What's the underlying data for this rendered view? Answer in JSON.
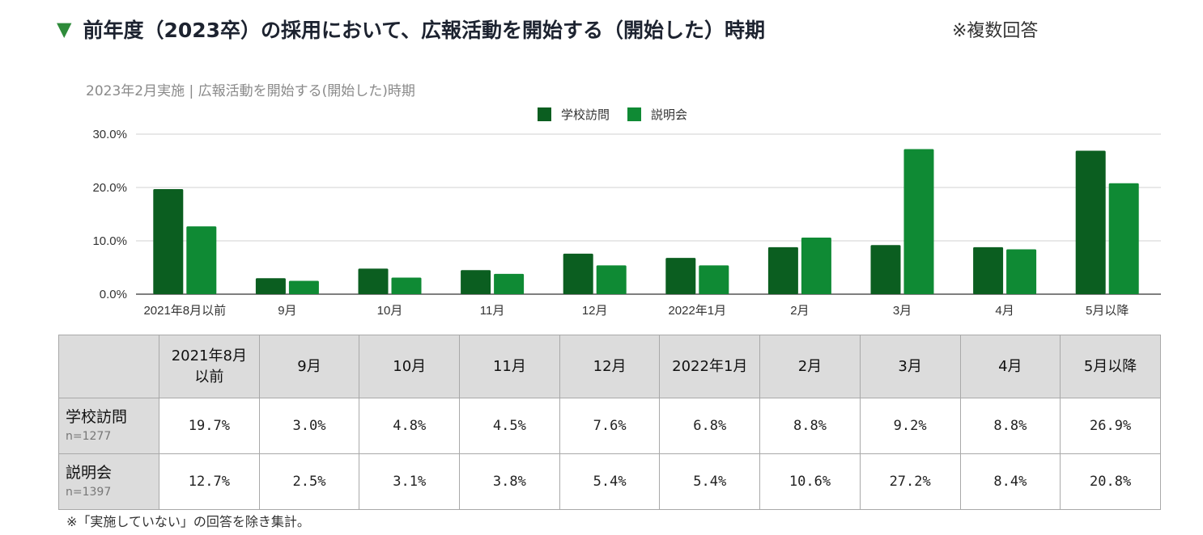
{
  "header": {
    "title": "前年度（2023卒）の採用において、広報活動を開始する（開始した）時期",
    "note": "※複数回答"
  },
  "chart_data": {
    "type": "bar",
    "title": "2023年2月実施 | 広報活動を開始する(開始した)時期",
    "categories": [
      "2021年8月以前",
      "9月",
      "10月",
      "11月",
      "12月",
      "2022年1月",
      "2月",
      "3月",
      "4月",
      "5月以降"
    ],
    "series": [
      {
        "name": "学校訪問",
        "color": "#0b5e20",
        "values": [
          19.7,
          3.0,
          4.8,
          4.5,
          7.6,
          6.8,
          8.8,
          9.2,
          8.8,
          26.9
        ]
      },
      {
        "name": "説明会",
        "color": "#0f8a34",
        "values": [
          12.7,
          2.5,
          3.1,
          3.8,
          5.4,
          5.4,
          10.6,
          27.2,
          8.4,
          20.8
        ]
      }
    ],
    "yticks": [
      "0.0%",
      "10.0%",
      "20.0%",
      "30.0%"
    ],
    "ylim": [
      0,
      30
    ],
    "legend_position": "top-center",
    "grid": true
  },
  "table": {
    "headers": [
      "2021年8月\n以前",
      "9月",
      "10月",
      "11月",
      "12月",
      "2022年1月",
      "2月",
      "3月",
      "4月",
      "5月以降"
    ],
    "rows": [
      {
        "label": "学校訪問",
        "n": "n=1277",
        "values": [
          "19.7%",
          "3.0%",
          "4.8%",
          "4.5%",
          "7.6%",
          "6.8%",
          "8.8%",
          "9.2%",
          "8.8%",
          "26.9%"
        ]
      },
      {
        "label": "説明会",
        "n": "n=1397",
        "values": [
          "12.7%",
          "2.5%",
          "3.1%",
          "3.8%",
          "5.4%",
          "5.4%",
          "10.6%",
          "27.2%",
          "8.4%",
          "20.8%"
        ]
      }
    ]
  },
  "footnote": "※「実施していない」の回答を除き集計。"
}
